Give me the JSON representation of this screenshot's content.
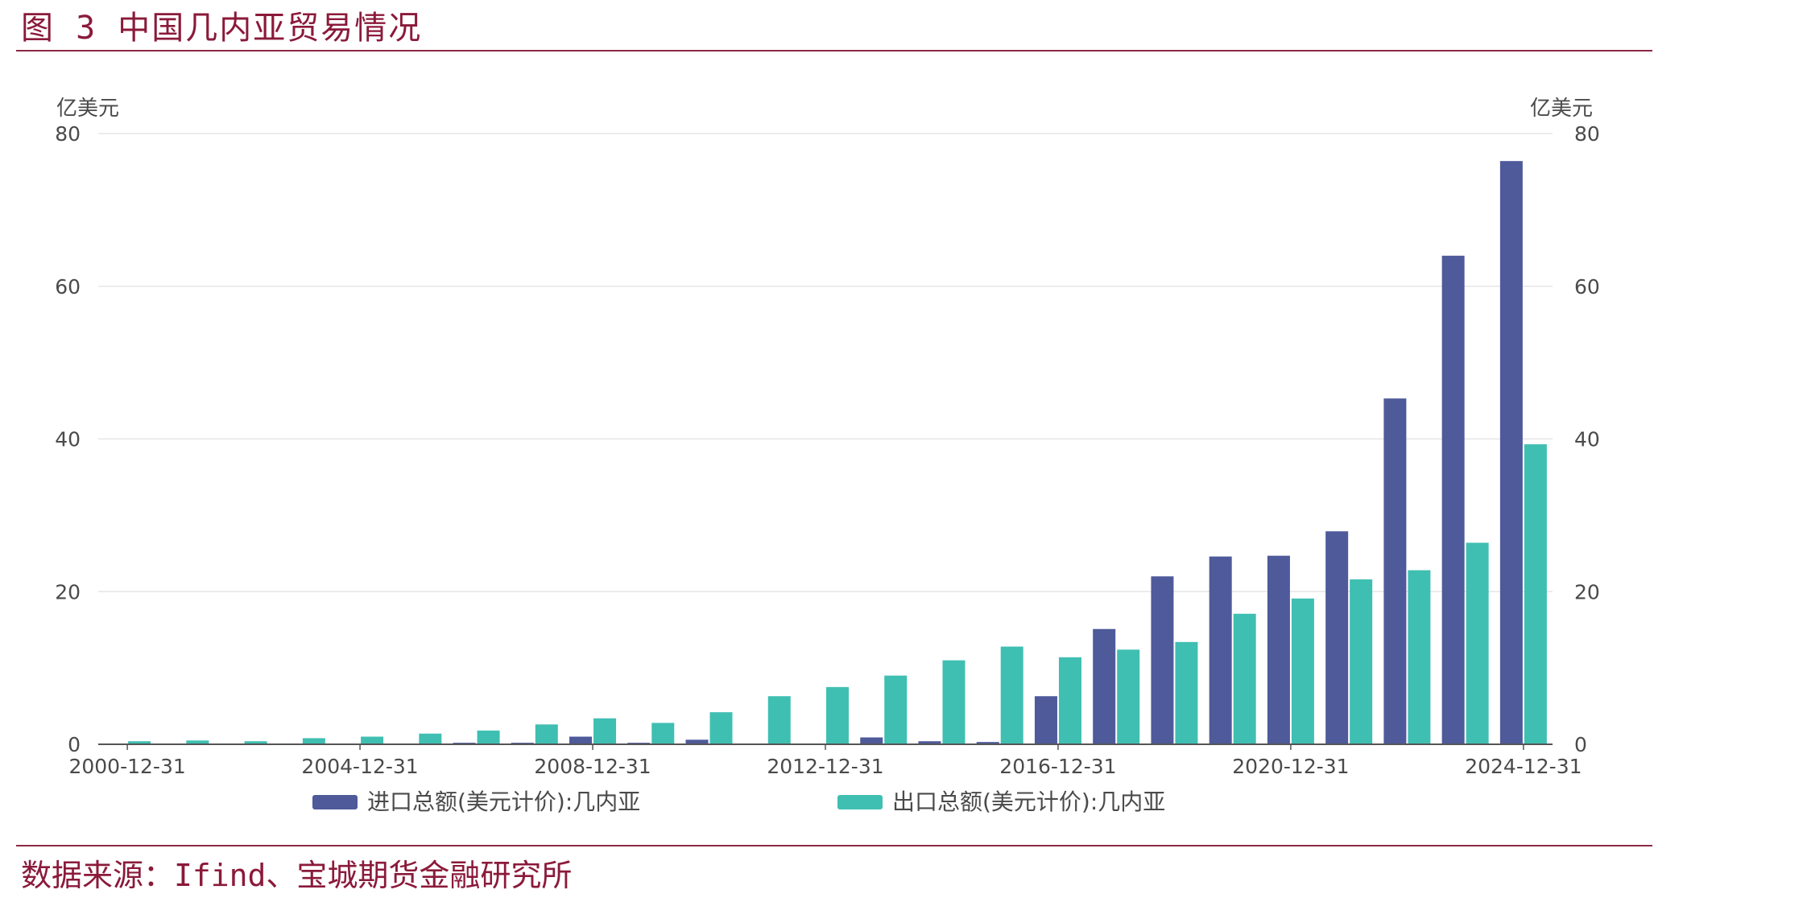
{
  "figure": {
    "title": "图 3 中国几内亚贸易情况",
    "source": "数据来源：Ifind、宝城期货金融研究所"
  },
  "chart_data": {
    "type": "bar",
    "unit_left": "亿美元",
    "unit_right": "亿美元",
    "categories": [
      "2000-12-31",
      "2001-12-31",
      "2002-12-31",
      "2003-12-31",
      "2004-12-31",
      "2005-12-31",
      "2006-12-31",
      "2007-12-31",
      "2008-12-31",
      "2009-12-31",
      "2010-12-31",
      "2011-12-31",
      "2012-12-31",
      "2013-12-31",
      "2014-12-31",
      "2015-12-31",
      "2016-12-31",
      "2017-12-31",
      "2018-12-31",
      "2019-12-31",
      "2020-12-31",
      "2021-12-31",
      "2022-12-31",
      "2023-12-31",
      "2024-12-31"
    ],
    "tick_labels": [
      "2000-12-31",
      "2004-12-31",
      "2008-12-31",
      "2012-12-31",
      "2016-12-31",
      "2020-12-31",
      "2024-12-31"
    ],
    "tick_indices": [
      0,
      4,
      8,
      12,
      16,
      20,
      24
    ],
    "ylim": [
      0,
      80
    ],
    "yticks": [
      0,
      20,
      40,
      60,
      80
    ],
    "series": [
      {
        "name": "进口总额(美元计价):几内亚",
        "color": "#4E5A9A",
        "values": [
          0.1,
          0.1,
          0.1,
          0.1,
          0.1,
          0.1,
          0.2,
          0.2,
          1.0,
          0.2,
          0.6,
          0.1,
          0.1,
          0.9,
          0.4,
          0.3,
          6.3,
          15.1,
          22.0,
          24.6,
          24.7,
          27.9,
          45.3,
          64.0,
          76.4
        ]
      },
      {
        "name": "出口总额(美元计价):几内亚",
        "color": "#3FBFB2",
        "values": [
          0.4,
          0.5,
          0.4,
          0.8,
          1.0,
          1.4,
          1.8,
          2.6,
          3.4,
          2.8,
          4.2,
          6.3,
          7.5,
          9.0,
          11.0,
          12.8,
          11.4,
          12.4,
          13.4,
          17.1,
          19.1,
          21.6,
          22.8,
          26.4,
          39.3
        ]
      }
    ],
    "grid": true,
    "legend_position": "bottom"
  }
}
